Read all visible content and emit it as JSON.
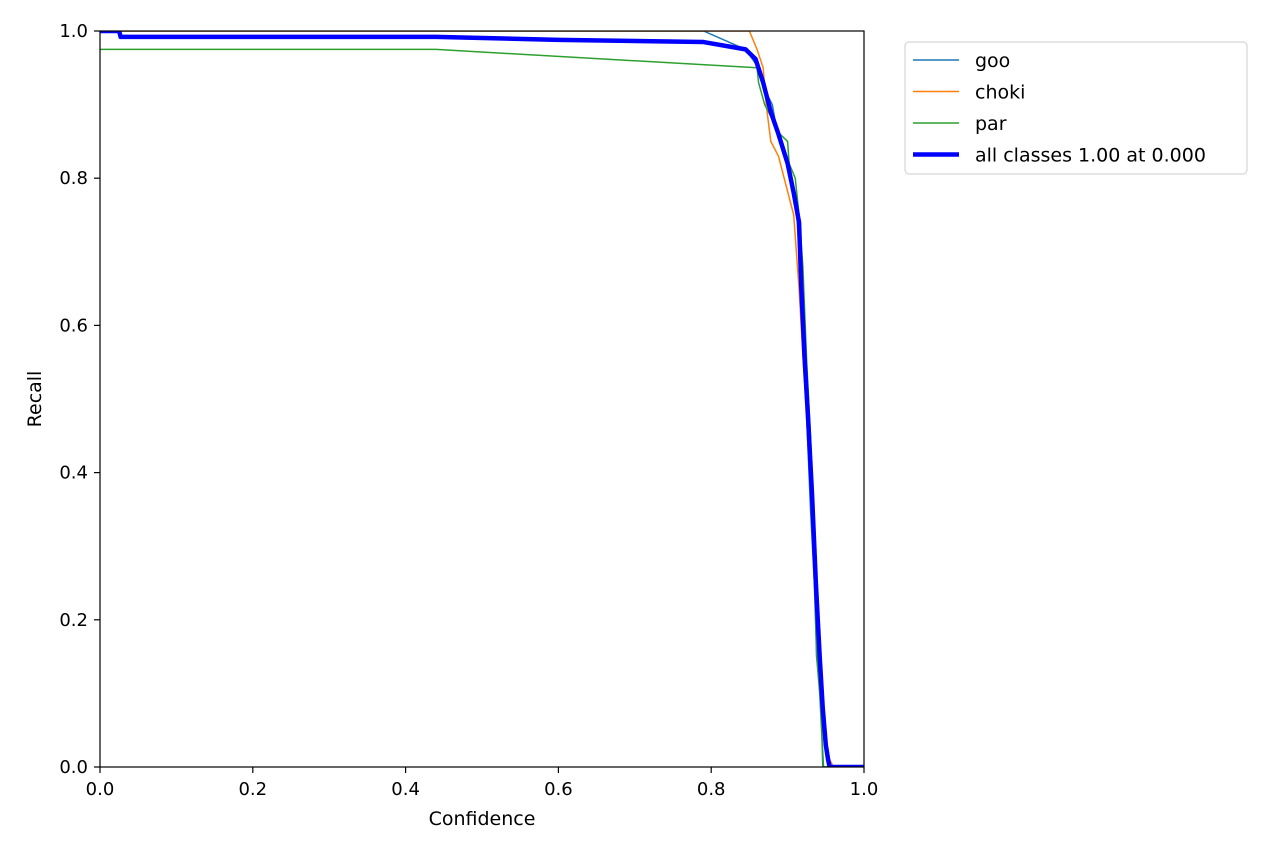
{
  "chart_data": {
    "type": "line",
    "title": "",
    "xlabel": "Confidence",
    "ylabel": "Recall",
    "xlim": [
      0,
      1
    ],
    "ylim": [
      0,
      1
    ],
    "grid": false,
    "legend_position": "outside-top-right",
    "x_ticks": [
      "0.0",
      "0.2",
      "0.4",
      "0.6",
      "0.8",
      "1.0"
    ],
    "y_ticks": [
      "0.0",
      "0.2",
      "0.4",
      "0.6",
      "0.8",
      "1.0"
    ],
    "series": [
      {
        "name": "goo",
        "color": "#1f77b4",
        "width": 1.5,
        "points": [
          [
            0,
            1.0
          ],
          [
            0.79,
            1.0
          ],
          [
            0.845,
            0.975
          ],
          [
            0.862,
            0.95
          ],
          [
            0.87,
            0.92
          ],
          [
            0.88,
            0.9
          ],
          [
            0.885,
            0.87
          ],
          [
            0.895,
            0.84
          ],
          [
            0.905,
            0.8
          ],
          [
            0.912,
            0.75
          ],
          [
            0.918,
            0.65
          ],
          [
            0.922,
            0.55
          ],
          [
            0.926,
            0.45
          ],
          [
            0.93,
            0.35
          ],
          [
            0.935,
            0.25
          ],
          [
            0.938,
            0.15
          ],
          [
            0.943,
            0.1
          ],
          [
            0.945,
            0.04
          ],
          [
            0.947,
            0.0
          ],
          [
            1.0,
            0.0
          ]
        ]
      },
      {
        "name": "choki",
        "color": "#ff7f0e",
        "width": 1.5,
        "points": [
          [
            0,
            1.0
          ],
          [
            0.85,
            1.0
          ],
          [
            0.86,
            0.975
          ],
          [
            0.868,
            0.95
          ],
          [
            0.872,
            0.9
          ],
          [
            0.878,
            0.85
          ],
          [
            0.888,
            0.83
          ],
          [
            0.898,
            0.79
          ],
          [
            0.908,
            0.75
          ],
          [
            0.915,
            0.65
          ],
          [
            0.92,
            0.56
          ],
          [
            0.925,
            0.48
          ],
          [
            0.93,
            0.38
          ],
          [
            0.935,
            0.28
          ],
          [
            0.94,
            0.18
          ],
          [
            0.945,
            0.1
          ],
          [
            0.95,
            0.04
          ],
          [
            0.955,
            0.01
          ],
          [
            0.96,
            0.0
          ],
          [
            1.0,
            0.0
          ]
        ]
      },
      {
        "name": "par",
        "color": "#2ca02c",
        "width": 1.5,
        "points": [
          [
            0,
            0.975
          ],
          [
            0.025,
            0.975
          ],
          [
            0.44,
            0.975
          ],
          [
            0.86,
            0.95
          ],
          [
            0.862,
            0.93
          ],
          [
            0.87,
            0.9
          ],
          [
            0.88,
            0.88
          ],
          [
            0.89,
            0.86
          ],
          [
            0.9,
            0.85
          ],
          [
            0.902,
            0.82
          ],
          [
            0.91,
            0.8
          ],
          [
            0.915,
            0.75
          ],
          [
            0.92,
            0.68
          ],
          [
            0.925,
            0.55
          ],
          [
            0.93,
            0.45
          ],
          [
            0.935,
            0.3
          ],
          [
            0.938,
            0.15
          ],
          [
            0.942,
            0.1
          ],
          [
            0.945,
            0.04
          ],
          [
            0.946,
            0.0
          ],
          [
            1.0,
            0.0
          ]
        ]
      },
      {
        "name": "all classes 1.00 at 0.000",
        "color": "#0000ff",
        "width": 4.5,
        "points": [
          [
            0,
            1.0
          ],
          [
            0.025,
            1.0
          ],
          [
            0.027,
            0.992
          ],
          [
            0.44,
            0.992
          ],
          [
            0.6,
            0.988
          ],
          [
            0.79,
            0.985
          ],
          [
            0.845,
            0.975
          ],
          [
            0.858,
            0.962
          ],
          [
            0.868,
            0.93
          ],
          [
            0.878,
            0.89
          ],
          [
            0.888,
            0.86
          ],
          [
            0.9,
            0.82
          ],
          [
            0.908,
            0.78
          ],
          [
            0.915,
            0.74
          ],
          [
            0.918,
            0.65
          ],
          [
            0.922,
            0.56
          ],
          [
            0.927,
            0.47
          ],
          [
            0.932,
            0.37
          ],
          [
            0.937,
            0.25
          ],
          [
            0.942,
            0.15
          ],
          [
            0.946,
            0.08
          ],
          [
            0.95,
            0.03
          ],
          [
            0.953,
            0.01
          ],
          [
            0.955,
            0.0
          ],
          [
            1.0,
            0.0
          ]
        ]
      }
    ]
  }
}
